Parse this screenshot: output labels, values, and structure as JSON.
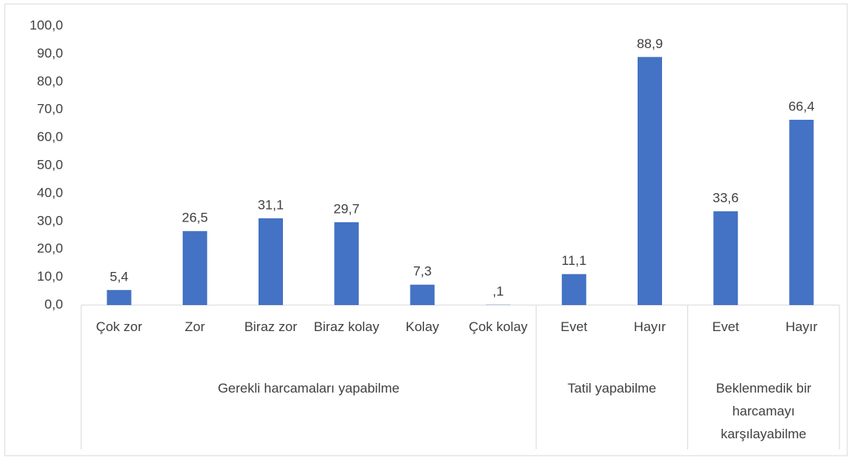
{
  "chart_data": {
    "type": "bar",
    "color": "#4472c4",
    "groups": [
      {
        "name": "Gerekli harcamaları yapabilme",
        "categories": [
          "Çok zor",
          "Zor",
          "Biraz zor",
          "Biraz kolay",
          "Kolay",
          "Çok kolay"
        ],
        "values": [
          5.4,
          26.5,
          31.1,
          29.7,
          7.3,
          0.1
        ],
        "value_labels": [
          "5,4",
          "26,5",
          "31,1",
          "29,7",
          "7,3",
          ",1"
        ]
      },
      {
        "name": "Tatil yapabilme",
        "categories": [
          "Evet",
          "Hayır"
        ],
        "values": [
          11.1,
          88.9
        ],
        "value_labels": [
          "11,1",
          "88,9"
        ]
      },
      {
        "name": "Beklenmedik bir harcamayı karşılayabilme",
        "categories": [
          "Evet",
          "Hayır"
        ],
        "values": [
          33.6,
          66.4
        ],
        "value_labels": [
          "33,6",
          "66,4"
        ]
      }
    ],
    "ylim": [
      0,
      100
    ],
    "yticks": [
      {
        "value": 0,
        "label": "0,0"
      },
      {
        "value": 10,
        "label": "10,0"
      },
      {
        "value": 20,
        "label": "20,0"
      },
      {
        "value": 30,
        "label": "30,0"
      },
      {
        "value": 40,
        "label": "40,0"
      },
      {
        "value": 50,
        "label": "50,0"
      },
      {
        "value": 60,
        "label": "60,0"
      },
      {
        "value": 70,
        "label": "70,0"
      },
      {
        "value": 80,
        "label": "80,0"
      },
      {
        "value": 90,
        "label": "90,0"
      },
      {
        "value": 100,
        "label": "100,0"
      }
    ],
    "grid": false
  }
}
